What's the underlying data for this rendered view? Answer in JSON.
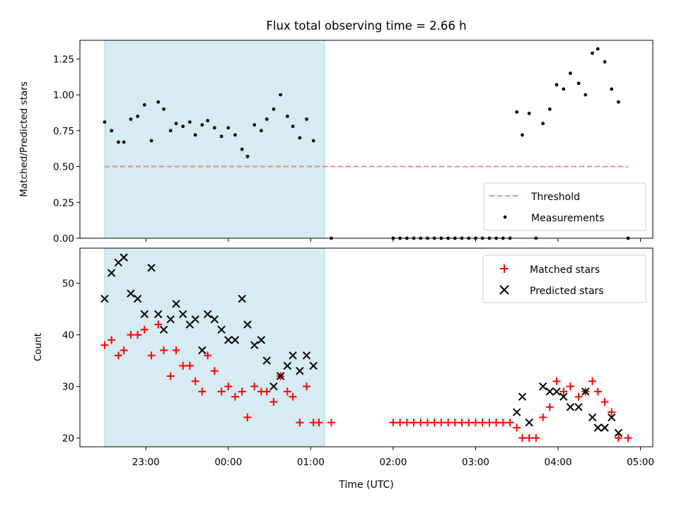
{
  "chart_data": [
    {
      "type": "scatter",
      "title": "Flux total observing time = 2.66 h",
      "ylabel": "Matched/Predicted stars",
      "xlabel": "",
      "x_ticks": [
        "23:00",
        "00:00",
        "01:00",
        "02:00",
        "03:00",
        "04:00",
        "05:00"
      ],
      "x_tick_labels_shown": false,
      "y_ticks": [
        "0.00",
        "0.25",
        "0.50",
        "0.75",
        "1.00",
        "1.25"
      ],
      "ylim": [
        0,
        1.38
      ],
      "xlim_hours": [
        -1.8,
        5.15
      ],
      "shaded_span_hours": [
        -1.5,
        1.167
      ],
      "shaded_color": "#add8e6",
      "legend_position": "lower right",
      "threshold": {
        "name": "Threshold",
        "value": 0.5,
        "x_range_hours": [
          -1.5,
          4.85
        ],
        "color": "#f08080"
      },
      "series": [
        {
          "name": "Measurements",
          "color": "#000000",
          "points": [
            [
              -1.5,
              0.81
            ],
            [
              -1.417,
              0.75
            ],
            [
              -1.333,
              0.67
            ],
            [
              -1.267,
              0.67
            ],
            [
              -1.183,
              0.83
            ],
            [
              -1.1,
              0.85
            ],
            [
              -1.017,
              0.93
            ],
            [
              -0.933,
              0.68
            ],
            [
              -0.85,
              0.95
            ],
            [
              -0.783,
              0.9
            ],
            [
              -0.7,
              0.75
            ],
            [
              -0.633,
              0.8
            ],
            [
              -0.55,
              0.78
            ],
            [
              -0.467,
              0.81
            ],
            [
              -0.4,
              0.72
            ],
            [
              -0.317,
              0.79
            ],
            [
              -0.25,
              0.82
            ],
            [
              -0.167,
              0.77
            ],
            [
              -0.083,
              0.71
            ],
            [
              0.0,
              0.77
            ],
            [
              0.083,
              0.72
            ],
            [
              0.167,
              0.62
            ],
            [
              0.233,
              0.57
            ],
            [
              0.317,
              0.79
            ],
            [
              0.4,
              0.75
            ],
            [
              0.467,
              0.83
            ],
            [
              0.55,
              0.9
            ],
            [
              0.633,
              1.0
            ],
            [
              0.717,
              0.85
            ],
            [
              0.783,
              0.78
            ],
            [
              0.867,
              0.7
            ],
            [
              0.95,
              0.83
            ],
            [
              1.033,
              0.68
            ],
            [
              1.25,
              0.0
            ],
            [
              2.0,
              0.0
            ],
            [
              2.083,
              0.0
            ],
            [
              2.167,
              0.0
            ],
            [
              2.25,
              0.0
            ],
            [
              2.333,
              0.0
            ],
            [
              2.417,
              0.0
            ],
            [
              2.5,
              0.0
            ],
            [
              2.583,
              0.0
            ],
            [
              2.667,
              0.0
            ],
            [
              2.75,
              0.0
            ],
            [
              2.833,
              0.0
            ],
            [
              2.917,
              0.0
            ],
            [
              3.0,
              0.0
            ],
            [
              3.083,
              0.0
            ],
            [
              3.167,
              0.0
            ],
            [
              3.25,
              0.0
            ],
            [
              3.333,
              0.0
            ],
            [
              3.417,
              0.0
            ],
            [
              3.5,
              0.88
            ],
            [
              3.567,
              0.72
            ],
            [
              3.65,
              0.87
            ],
            [
              3.733,
              0.0
            ],
            [
              3.817,
              0.8
            ],
            [
              3.9,
              0.9
            ],
            [
              3.983,
              1.07
            ],
            [
              4.067,
              1.04
            ],
            [
              4.15,
              1.15
            ],
            [
              4.25,
              1.08
            ],
            [
              4.333,
              1.0
            ],
            [
              4.417,
              1.29
            ],
            [
              4.483,
              1.32
            ],
            [
              4.567,
              1.23
            ],
            [
              4.65,
              1.04
            ],
            [
              4.733,
              0.95
            ],
            [
              4.85,
              0.0
            ]
          ]
        }
      ]
    },
    {
      "type": "scatter",
      "title": "",
      "ylabel": "Count",
      "xlabel": "Time (UTC)",
      "x_ticks": [
        "23:00",
        "00:00",
        "01:00",
        "02:00",
        "03:00",
        "04:00",
        "05:00"
      ],
      "x_tick_labels_shown": true,
      "y_ticks": [
        "20",
        "30",
        "40",
        "50"
      ],
      "ylim": [
        18.3,
        56.8
      ],
      "xlim_hours": [
        -1.8,
        5.15
      ],
      "shaded_span_hours": [
        -1.5,
        1.167
      ],
      "shaded_color": "#add8e6",
      "legend_position": "upper right",
      "series": [
        {
          "name": "Matched stars",
          "marker": "+",
          "color": "#ff0000",
          "points": [
            [
              -1.5,
              38
            ],
            [
              -1.417,
              39
            ],
            [
              -1.333,
              36
            ],
            [
              -1.267,
              37
            ],
            [
              -1.183,
              40
            ],
            [
              -1.1,
              40
            ],
            [
              -1.017,
              41
            ],
            [
              -0.933,
              36
            ],
            [
              -0.85,
              42
            ],
            [
              -0.783,
              37
            ],
            [
              -0.7,
              32
            ],
            [
              -0.633,
              37
            ],
            [
              -0.55,
              34
            ],
            [
              -0.467,
              34
            ],
            [
              -0.4,
              31
            ],
            [
              -0.317,
              29
            ],
            [
              -0.25,
              36
            ],
            [
              -0.167,
              33
            ],
            [
              -0.083,
              29
            ],
            [
              0.0,
              30
            ],
            [
              0.083,
              28
            ],
            [
              0.167,
              29
            ],
            [
              0.233,
              24
            ],
            [
              0.317,
              30
            ],
            [
              0.4,
              29
            ],
            [
              0.467,
              29
            ],
            [
              0.55,
              27
            ],
            [
              0.633,
              32
            ],
            [
              0.717,
              29
            ],
            [
              0.783,
              28
            ],
            [
              0.867,
              23
            ],
            [
              0.95,
              30
            ],
            [
              1.033,
              23
            ],
            [
              1.1,
              23
            ],
            [
              1.25,
              23
            ],
            [
              2.0,
              23
            ],
            [
              2.083,
              23
            ],
            [
              2.167,
              23
            ],
            [
              2.25,
              23
            ],
            [
              2.333,
              23
            ],
            [
              2.417,
              23
            ],
            [
              2.5,
              23
            ],
            [
              2.583,
              23
            ],
            [
              2.667,
              23
            ],
            [
              2.75,
              23
            ],
            [
              2.833,
              23
            ],
            [
              2.917,
              23
            ],
            [
              3.0,
              23
            ],
            [
              3.083,
              23
            ],
            [
              3.167,
              23
            ],
            [
              3.25,
              23
            ],
            [
              3.333,
              23
            ],
            [
              3.417,
              23
            ],
            [
              3.5,
              22
            ],
            [
              3.567,
              20
            ],
            [
              3.65,
              20
            ],
            [
              3.733,
              20
            ],
            [
              3.817,
              24
            ],
            [
              3.9,
              26
            ],
            [
              3.983,
              31
            ],
            [
              4.067,
              29
            ],
            [
              4.15,
              30
            ],
            [
              4.25,
              28
            ],
            [
              4.333,
              29
            ],
            [
              4.417,
              31
            ],
            [
              4.483,
              29
            ],
            [
              4.567,
              27
            ],
            [
              4.65,
              25
            ],
            [
              4.733,
              20
            ],
            [
              4.85,
              20
            ]
          ]
        },
        {
          "name": "Predicted stars",
          "marker": "x",
          "color": "#000000",
          "points": [
            [
              -1.5,
              47
            ],
            [
              -1.417,
              52
            ],
            [
              -1.333,
              54
            ],
            [
              -1.267,
              55
            ],
            [
              -1.183,
              48
            ],
            [
              -1.1,
              47
            ],
            [
              -1.017,
              44
            ],
            [
              -0.933,
              53
            ],
            [
              -0.85,
              44
            ],
            [
              -0.783,
              41
            ],
            [
              -0.7,
              43
            ],
            [
              -0.633,
              46
            ],
            [
              -0.55,
              44
            ],
            [
              -0.467,
              42
            ],
            [
              -0.4,
              43
            ],
            [
              -0.317,
              37
            ],
            [
              -0.25,
              44
            ],
            [
              -0.167,
              43
            ],
            [
              -0.083,
              41
            ],
            [
              0.0,
              39
            ],
            [
              0.083,
              39
            ],
            [
              0.167,
              47
            ],
            [
              0.233,
              42
            ],
            [
              0.317,
              38
            ],
            [
              0.4,
              39
            ],
            [
              0.467,
              35
            ],
            [
              0.55,
              30
            ],
            [
              0.633,
              32
            ],
            [
              0.717,
              34
            ],
            [
              0.783,
              36
            ],
            [
              0.867,
              33
            ],
            [
              0.95,
              36
            ],
            [
              1.033,
              34
            ],
            [
              3.5,
              25
            ],
            [
              3.567,
              28
            ],
            [
              3.65,
              23
            ],
            [
              3.817,
              30
            ],
            [
              3.9,
              29
            ],
            [
              3.983,
              29
            ],
            [
              4.067,
              28
            ],
            [
              4.15,
              26
            ],
            [
              4.25,
              26
            ],
            [
              4.333,
              29
            ],
            [
              4.417,
              24
            ],
            [
              4.483,
              22
            ],
            [
              4.567,
              22
            ],
            [
              4.65,
              24
            ],
            [
              4.733,
              21
            ]
          ]
        }
      ]
    }
  ]
}
